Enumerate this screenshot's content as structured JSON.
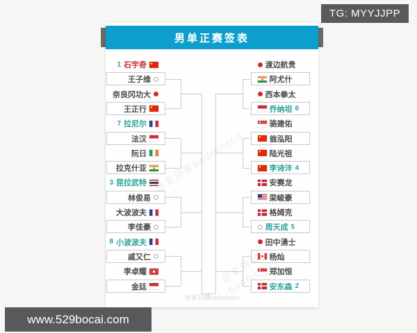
{
  "page": {
    "tg_label": "TG: MYYJJPP",
    "site_label": "www.529bocai.com",
    "watermark": "@爱羽客badminton"
  },
  "colors": {
    "banner": "#0d9fcc",
    "seed_accent": "#2aa198",
    "highlight_name": "#c4302d",
    "regular_name": "#4a4a4a",
    "bracket_line": "#c9c9c9",
    "badge_bg": "#58595b"
  },
  "bracket": {
    "title": "男单正赛签表",
    "left_rows": [
      {
        "seed": "1",
        "name": "石宇奇",
        "flag": "china",
        "color": "#c4302d"
      },
      {
        "name": "王子维",
        "flag": "taiwan"
      },
      {
        "name": "奈良冈功大",
        "flag": "japan"
      },
      {
        "name": "王正行",
        "flag": "china"
      },
      {
        "seed": "7",
        "name": "拉尼尔",
        "flag": "france",
        "color": "#2aa198"
      },
      {
        "name": "法汉",
        "flag": "indonesia"
      },
      {
        "name": "阮日",
        "flag": "ireland"
      },
      {
        "name": "拉克什亚",
        "flag": "india"
      },
      {
        "seed": "3",
        "name": "昆拉武特",
        "flag": "thailand",
        "color": "#2aa198"
      },
      {
        "name": "林俊易",
        "flag": "taiwan"
      },
      {
        "name": "大波波夫",
        "flag": "france"
      },
      {
        "name": "李佳豪",
        "flag": "taiwan"
      },
      {
        "seed": "8",
        "name": "小波波夫",
        "flag": "france",
        "color": "#2aa198"
      },
      {
        "name": "戚又仁",
        "flag": "taiwan"
      },
      {
        "name": "李卓耀",
        "flag": "hongkong"
      },
      {
        "name": "金廷",
        "flag": "indonesia"
      }
    ],
    "right_rows": [
      {
        "name": "渡边航贵",
        "flag": "japan"
      },
      {
        "name": "阿尤什",
        "flag": "india"
      },
      {
        "name": "西本拳太",
        "flag": "japan"
      },
      {
        "name": "乔纳坦",
        "seed": "6",
        "flag": "indonesia",
        "color": "#2aa198"
      },
      {
        "name": "骆建佑",
        "flag": "singapore"
      },
      {
        "name": "翁泓阳",
        "flag": "china"
      },
      {
        "name": "陆光祖",
        "flag": "china"
      },
      {
        "name": "李诗沣",
        "seed": "4",
        "flag": "china",
        "color": "#2aa198"
      },
      {
        "name": "安赛龙",
        "flag": "denmark"
      },
      {
        "name": "梁峻豪",
        "flag": "malaysia"
      },
      {
        "name": "格姆克",
        "flag": "denmark"
      },
      {
        "name": "周天成",
        "seed": "5",
        "flag": "taiwan",
        "color": "#2aa198"
      },
      {
        "name": "田中湧士",
        "flag": "japan"
      },
      {
        "name": "杨灿",
        "flag": "canada"
      },
      {
        "name": "郑加恒",
        "flag": "singapore"
      },
      {
        "name": "安东森",
        "seed": "2",
        "flag": "denmark",
        "color": "#2aa198"
      }
    ]
  }
}
